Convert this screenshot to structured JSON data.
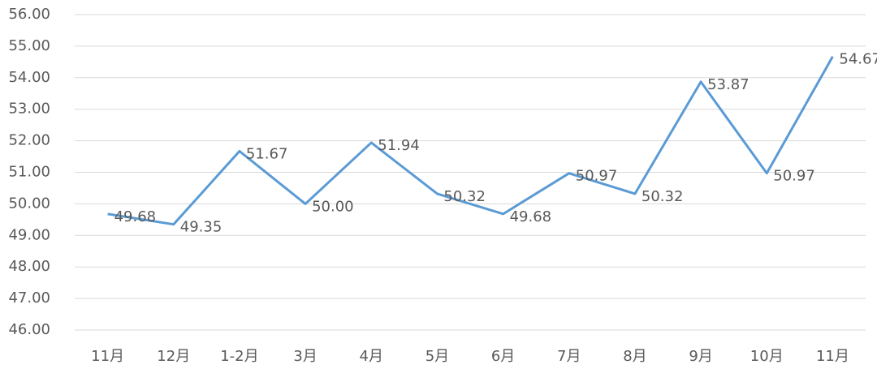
{
  "chart_data": {
    "type": "line",
    "categories": [
      "11月",
      "12月",
      "1-2月",
      "3月",
      "4月",
      "5月",
      "6月",
      "7月",
      "8月",
      "9月",
      "10月",
      "11月"
    ],
    "series": [
      {
        "color": "#5b9bd5",
        "values": [
          49.68,
          49.35,
          51.67,
          50.0,
          51.94,
          50.32,
          49.68,
          50.97,
          50.32,
          53.87,
          50.97,
          54.67
        ],
        "value_labels": [
          "49.68",
          "49.35",
          "51.67",
          "50.00",
          "51.94",
          "50.32",
          "49.68",
          "50.97",
          "50.32",
          "53.87",
          "50.97",
          "54.67"
        ]
      }
    ],
    "ylim": [
      46,
      56
    ],
    "yticks": [
      {
        "value": 46,
        "label": "46.00"
      },
      {
        "value": 47,
        "label": "47.00"
      },
      {
        "value": 48,
        "label": "48.00"
      },
      {
        "value": 49,
        "label": "49.00"
      },
      {
        "value": 50,
        "label": "50.00"
      },
      {
        "value": 51,
        "label": "51.00"
      },
      {
        "value": 52,
        "label": "52.00"
      },
      {
        "value": 53,
        "label": "53.00"
      },
      {
        "value": 54,
        "label": "54.00"
      },
      {
        "value": 55,
        "label": "55.00"
      },
      {
        "value": 56,
        "label": "56.00"
      }
    ],
    "grid": true
  }
}
